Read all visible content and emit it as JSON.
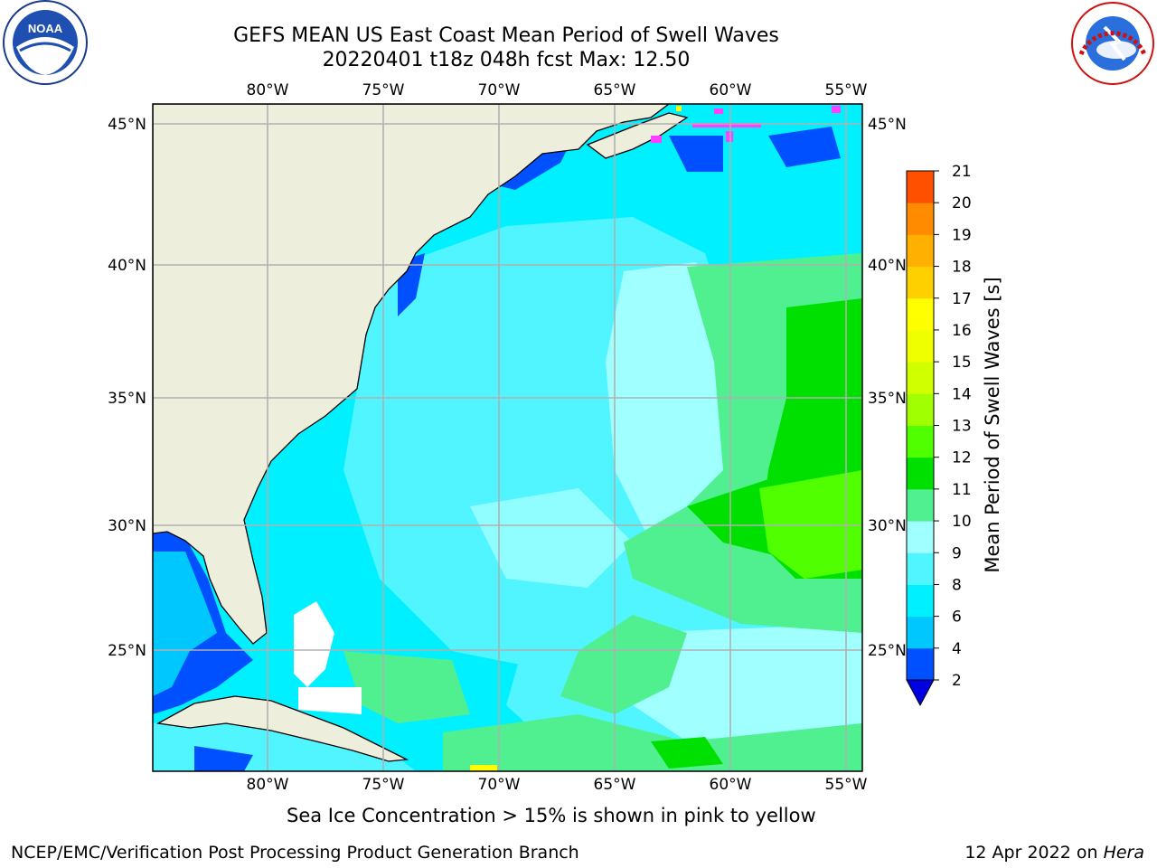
{
  "title_line1": "GEFS MEAN US East Coast Mean Period of Swell Waves",
  "title_line2": "20220401 t18z 048h fcst   Max: 12.50",
  "logos": {
    "left": "noaa-logo",
    "right": "nws-logo"
  },
  "map": {
    "lon_labels": [
      "80°W",
      "75°W",
      "70°W",
      "65°W",
      "60°W",
      "55°W"
    ],
    "lat_labels": [
      "45°N",
      "40°N",
      "35°N",
      "30°N",
      "25°N"
    ],
    "gridlines": true
  },
  "colorbar": {
    "label": "Mean Period of Swell Waves [s]",
    "ticks": [
      "2",
      "4",
      "6",
      "8",
      "9",
      "10",
      "11",
      "12",
      "13",
      "14",
      "15",
      "16",
      "17",
      "18",
      "19",
      "20",
      "21"
    ],
    "colors": [
      "#0050ff",
      "#00c8ff",
      "#00f0ff",
      "#50f5ff",
      "#a0ffff",
      "#50f090",
      "#00e000",
      "#50ff00",
      "#a0ff00",
      "#d0ff00",
      "#f0ff00",
      "#ffff00",
      "#ffd000",
      "#ffb000",
      "#ff8c00",
      "#ff5000",
      "#ff2000",
      "#ff0000"
    ],
    "extend_color": "#0000e0"
  },
  "colors": {
    "land": "#eeeedd",
    "ocean_deep": "#00f0ff",
    "ocean_mid": "#50f5ff",
    "ocean_light": "#a0ffff",
    "ocean_green": "#50f090",
    "ocean_bright_green": "#00e000",
    "coast_blue": "#0050ff",
    "ice_pink": "#ff40ff"
  },
  "ice_note": "Sea Ice Concentration > 15% is shown in pink to yellow",
  "footer_left": "NCEP/EMC/Verification Post Processing Product Generation Branch",
  "footer_date": "12 Apr 2022 on",
  "footer_host": "Hera"
}
